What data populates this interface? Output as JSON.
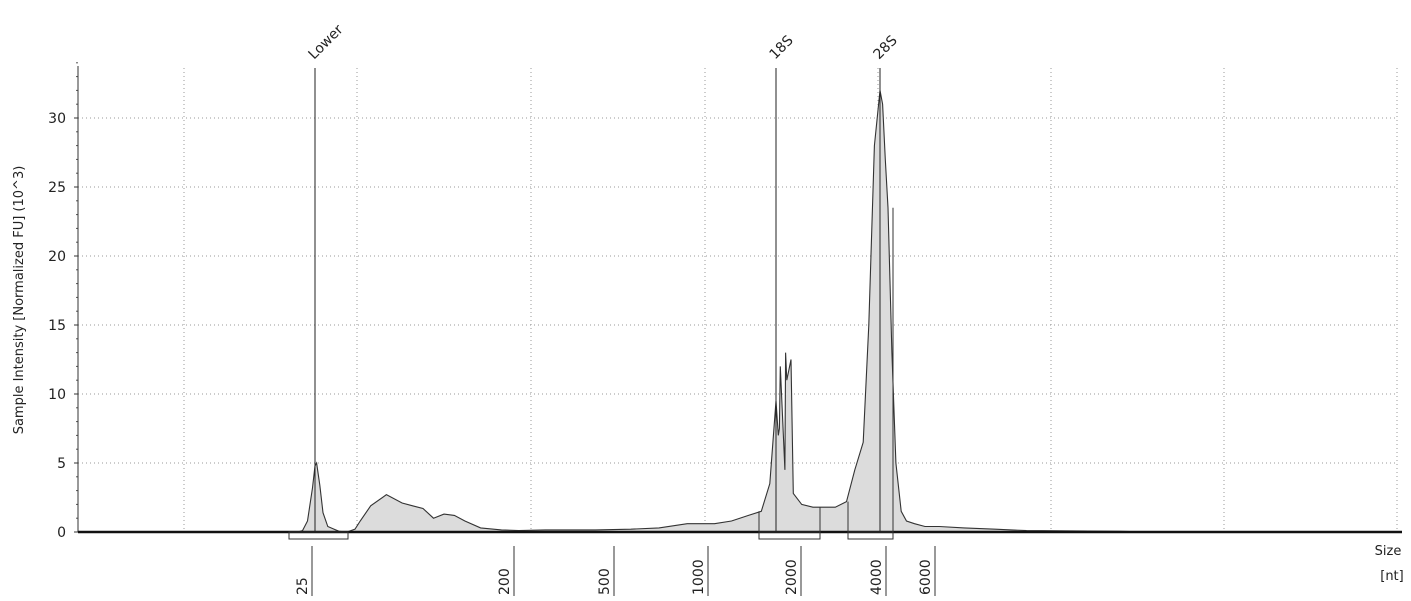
{
  "chart_data": {
    "type": "area",
    "title": "",
    "ylabel": "Sample Intensity [Normalized FU] (10^3)",
    "xlabel_lines": [
      "Size",
      "[nt]"
    ],
    "ylim": [
      0,
      34
    ],
    "grid": true,
    "yticks": [
      0,
      5,
      10,
      15,
      20,
      25,
      30
    ],
    "ytick_labels": [
      "0",
      "5",
      "10",
      "15",
      "20",
      "25",
      "30"
    ],
    "size_markers": [
      {
        "label": "25",
        "x": 25
      },
      {
        "label": "200",
        "x": 200
      },
      {
        "label": "500",
        "x": 500
      },
      {
        "label": "1000",
        "x": 1000
      },
      {
        "label": "2000",
        "x": 2000
      },
      {
        "label": "4000",
        "x": 4000
      },
      {
        "label": "6000",
        "x": 6000
      }
    ],
    "peaks": [
      {
        "label": "Lower",
        "x": 25
      },
      {
        "label": "18S",
        "x": 2140
      },
      {
        "label": "28S",
        "x": 4000
      }
    ],
    "series": [
      {
        "x": [
          0,
          15,
          18,
          20,
          22,
          24,
          25,
          26,
          28,
          30,
          33,
          37,
          40,
          45,
          50,
          55,
          65,
          80,
          95,
          105,
          115,
          125,
          135,
          145,
          155,
          170,
          190,
          220,
          300,
          450,
          600,
          750,
          900,
          1000,
          1100,
          1300,
          1500,
          1650,
          1750,
          1850,
          1950,
          2000,
          2050,
          2100,
          2140,
          2200,
          2300,
          2450,
          2600,
          2800,
          3000,
          3200,
          3400,
          3550,
          3700,
          3800,
          3900,
          4000,
          4100,
          4200,
          4300,
          4450,
          4600,
          4800,
          5000,
          5300,
          5700,
          6200,
          7000,
          8000,
          9000,
          12000,
          20000,
          50000,
          100000
        ],
        "y": [
          0,
          0,
          0,
          0.1,
          0.8,
          3.2,
          4.8,
          5.0,
          3.4,
          1.4,
          0.4,
          0.2,
          0.05,
          0,
          0.2,
          0.8,
          1.9,
          2.7,
          2.1,
          1.9,
          1.7,
          1.0,
          1.3,
          1.2,
          0.8,
          0.3,
          0.15,
          0.1,
          0.15,
          0.15,
          0.2,
          0.3,
          0.6,
          0.6,
          0.6,
          0.8,
          1.2,
          1.5,
          3.5,
          7.0,
          11.0,
          12.5,
          13.0,
          12.0,
          9.5,
          7.5,
          4.5,
          2.8,
          2.0,
          1.8,
          1.8,
          1.8,
          2.2,
          4.5,
          6.5,
          15.0,
          28.0,
          32.0,
          31.0,
          27.0,
          23.5,
          13.0,
          5.0,
          1.5,
          0.8,
          0.6,
          0.4,
          0.4,
          0.3,
          0.2,
          0.1,
          0.05,
          0,
          0,
          0
        ]
      }
    ]
  }
}
